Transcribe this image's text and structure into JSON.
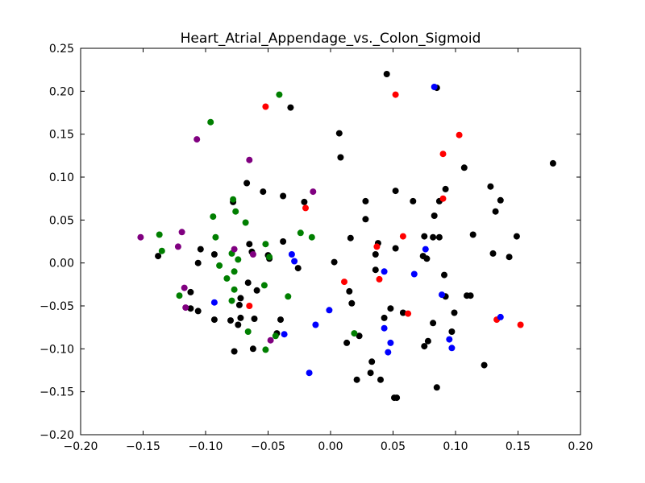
{
  "chart_data": {
    "type": "scatter",
    "title": "Heart_Atrial_Appendage_vs._Colon_Sigmoid",
    "xlabel": "",
    "ylabel": "",
    "xlim": [
      -0.2,
      0.2
    ],
    "ylim": [
      -0.2,
      0.25
    ],
    "grid": false,
    "x_ticks": [
      "−0.20",
      "−0.15",
      "−0.10",
      "−0.05",
      "0.00",
      "0.05",
      "0.10",
      "0.15",
      "0.20"
    ],
    "x_tick_values": [
      -0.2,
      -0.15,
      -0.1,
      -0.05,
      0.0,
      0.05,
      0.1,
      0.15,
      0.2
    ],
    "y_ticks": [
      "−0.20",
      "−0.15",
      "−0.10",
      "−0.05",
      "0.00",
      "0.05",
      "0.10",
      "0.15",
      "0.20",
      "0.25"
    ],
    "y_tick_values": [
      -0.2,
      -0.15,
      -0.1,
      -0.05,
      0.0,
      0.05,
      0.1,
      0.15,
      0.2,
      0.25
    ],
    "series": [
      {
        "color": "#000000",
        "points": [
          [
            0.045,
            0.22
          ],
          [
            0.085,
            0.204
          ],
          [
            -0.032,
            0.181
          ],
          [
            0.007,
            0.151
          ],
          [
            0.008,
            0.123
          ],
          [
            0.107,
            0.111
          ],
          [
            0.178,
            0.116
          ],
          [
            -0.067,
            0.093
          ],
          [
            0.092,
            0.086
          ],
          [
            0.128,
            0.089
          ],
          [
            -0.054,
            0.083
          ],
          [
            0.052,
            0.084
          ],
          [
            -0.038,
            0.078
          ],
          [
            0.136,
            0.073
          ],
          [
            -0.078,
            0.071
          ],
          [
            -0.021,
            0.071
          ],
          [
            0.028,
            0.072
          ],
          [
            0.066,
            0.072
          ],
          [
            0.087,
            0.072
          ],
          [
            0.132,
            0.06
          ],
          [
            0.083,
            0.055
          ],
          [
            0.028,
            0.051
          ],
          [
            0.114,
            0.033
          ],
          [
            0.149,
            0.031
          ],
          [
            0.075,
            0.031
          ],
          [
            0.082,
            0.03
          ],
          [
            0.087,
            0.03
          ],
          [
            0.016,
            0.029
          ],
          [
            0.038,
            0.023
          ],
          [
            -0.038,
            0.025
          ],
          [
            -0.065,
            0.022
          ],
          [
            0.052,
            0.017
          ],
          [
            -0.104,
            0.016
          ],
          [
            -0.063,
            0.013
          ],
          [
            -0.138,
            0.008
          ],
          [
            -0.093,
            0.01
          ],
          [
            -0.05,
            0.009
          ],
          [
            0.036,
            0.01
          ],
          [
            0.074,
            0.008
          ],
          [
            0.13,
            0.011
          ],
          [
            -0.049,
            0.005
          ],
          [
            0.077,
            0.005
          ],
          [
            0.143,
            0.007
          ],
          [
            -0.106,
            0.0
          ],
          [
            0.003,
            0.001
          ],
          [
            -0.026,
            -0.006
          ],
          [
            0.036,
            -0.008
          ],
          [
            -0.066,
            -0.023
          ],
          [
            0.091,
            -0.014
          ],
          [
            -0.059,
            -0.032
          ],
          [
            -0.112,
            -0.034
          ],
          [
            0.015,
            -0.033
          ],
          [
            -0.072,
            -0.041
          ],
          [
            0.092,
            -0.039
          ],
          [
            0.109,
            -0.038
          ],
          [
            0.112,
            -0.038
          ],
          [
            -0.073,
            -0.049
          ],
          [
            0.017,
            -0.047
          ],
          [
            -0.112,
            -0.053
          ],
          [
            -0.106,
            -0.056
          ],
          [
            0.048,
            -0.053
          ],
          [
            0.058,
            -0.058
          ],
          [
            0.099,
            -0.058
          ],
          [
            -0.093,
            -0.066
          ],
          [
            -0.08,
            -0.067
          ],
          [
            -0.072,
            -0.064
          ],
          [
            -0.061,
            -0.065
          ],
          [
            0.043,
            -0.064
          ],
          [
            -0.04,
            -0.066
          ],
          [
            -0.074,
            -0.072
          ],
          [
            0.082,
            -0.07
          ],
          [
            0.097,
            -0.08
          ],
          [
            -0.043,
            -0.082
          ],
          [
            0.023,
            -0.085
          ],
          [
            0.013,
            -0.093
          ],
          [
            0.078,
            -0.091
          ],
          [
            0.075,
            -0.097
          ],
          [
            -0.062,
            -0.1
          ],
          [
            -0.077,
            -0.103
          ],
          [
            0.123,
            -0.119
          ],
          [
            0.033,
            -0.115
          ],
          [
            0.032,
            -0.128
          ],
          [
            0.021,
            -0.136
          ],
          [
            0.04,
            -0.136
          ],
          [
            0.085,
            -0.145
          ],
          [
            0.051,
            -0.157
          ],
          [
            0.053,
            -0.157
          ]
        ]
      },
      {
        "color": "#ff0000",
        "points": [
          [
            -0.052,
            0.182
          ],
          [
            0.052,
            0.196
          ],
          [
            0.103,
            0.149
          ],
          [
            0.09,
            0.127
          ],
          [
            0.09,
            0.075
          ],
          [
            -0.02,
            0.064
          ],
          [
            0.058,
            0.031
          ],
          [
            0.037,
            0.019
          ],
          [
            0.011,
            -0.022
          ],
          [
            0.039,
            -0.019
          ],
          [
            -0.065,
            -0.05
          ],
          [
            0.062,
            -0.059
          ],
          [
            0.133,
            -0.066
          ],
          [
            0.152,
            -0.072
          ]
        ]
      },
      {
        "color": "#0000ff",
        "points": [
          [
            0.083,
            0.205
          ],
          [
            0.076,
            0.016
          ],
          [
            -0.031,
            0.01
          ],
          [
            -0.029,
            0.002
          ],
          [
            0.043,
            -0.01
          ],
          [
            0.067,
            -0.013
          ],
          [
            0.089,
            -0.037
          ],
          [
            -0.093,
            -0.046
          ],
          [
            -0.001,
            -0.055
          ],
          [
            0.136,
            -0.063
          ],
          [
            -0.012,
            -0.072
          ],
          [
            0.043,
            -0.076
          ],
          [
            -0.037,
            -0.083
          ],
          [
            0.095,
            -0.089
          ],
          [
            0.048,
            -0.093
          ],
          [
            0.097,
            -0.099
          ],
          [
            0.046,
            -0.104
          ],
          [
            -0.017,
            -0.128
          ]
        ]
      },
      {
        "color": "#007f00",
        "points": [
          [
            -0.041,
            0.196
          ],
          [
            -0.096,
            0.164
          ],
          [
            -0.078,
            0.074
          ],
          [
            -0.076,
            0.06
          ],
          [
            -0.094,
            0.054
          ],
          [
            -0.068,
            0.047
          ],
          [
            -0.137,
            0.033
          ],
          [
            -0.092,
            0.03
          ],
          [
            -0.024,
            0.035
          ],
          [
            -0.015,
            0.03
          ],
          [
            -0.052,
            0.022
          ],
          [
            -0.135,
            0.014
          ],
          [
            -0.079,
            0.011
          ],
          [
            -0.074,
            0.004
          ],
          [
            -0.049,
            0.007
          ],
          [
            -0.089,
            -0.003
          ],
          [
            -0.077,
            -0.01
          ],
          [
            -0.083,
            -0.018
          ],
          [
            -0.053,
            -0.026
          ],
          [
            -0.077,
            -0.031
          ],
          [
            -0.121,
            -0.038
          ],
          [
            -0.034,
            -0.039
          ],
          [
            -0.079,
            -0.044
          ],
          [
            -0.066,
            -0.08
          ],
          [
            0.019,
            -0.082
          ],
          [
            -0.044,
            -0.085
          ],
          [
            -0.052,
            -0.101
          ]
        ]
      },
      {
        "color": "#800080",
        "points": [
          [
            -0.107,
            0.144
          ],
          [
            -0.065,
            0.12
          ],
          [
            -0.014,
            0.083
          ],
          [
            -0.152,
            0.03
          ],
          [
            -0.119,
            0.036
          ],
          [
            -0.122,
            0.019
          ],
          [
            -0.077,
            0.016
          ],
          [
            -0.062,
            0.01
          ],
          [
            -0.117,
            -0.029
          ],
          [
            -0.116,
            -0.052
          ],
          [
            -0.048,
            -0.09
          ]
        ]
      }
    ]
  }
}
